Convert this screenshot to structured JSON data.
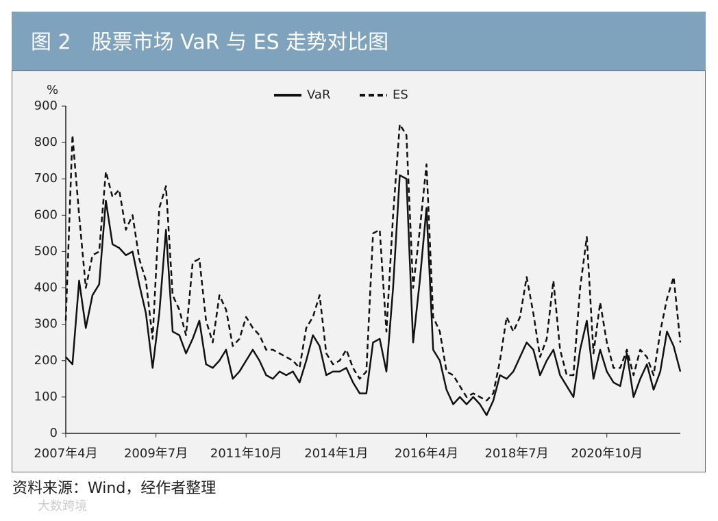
{
  "chart_data": {
    "type": "line",
    "title": "图 2　股票市场 VaR 与 ES 走势对比图",
    "y_label": "%",
    "source": "资料来源：Wind，经作者整理",
    "watermark": "大数跨境",
    "x": [
      "2007-04",
      "2007-06",
      "2007-08",
      "2007-10",
      "2007-12",
      "2008-02",
      "2008-04",
      "2008-06",
      "2008-08",
      "2008-10",
      "2008-12",
      "2009-02",
      "2009-04",
      "2009-06",
      "2009-08",
      "2009-10",
      "2009-12",
      "2010-02",
      "2010-04",
      "2010-06",
      "2010-08",
      "2010-10",
      "2010-12",
      "2011-02",
      "2011-04",
      "2011-06",
      "2011-08",
      "2011-10",
      "2011-12",
      "2012-02",
      "2012-04",
      "2012-06",
      "2012-08",
      "2012-10",
      "2012-12",
      "2013-02",
      "2013-04",
      "2013-06",
      "2013-08",
      "2013-10",
      "2013-12",
      "2014-02",
      "2014-04",
      "2014-06",
      "2014-08",
      "2014-10",
      "2014-12",
      "2015-02",
      "2015-04",
      "2015-06",
      "2015-08",
      "2015-10",
      "2015-12",
      "2016-02",
      "2016-04",
      "2016-06",
      "2016-08",
      "2016-10",
      "2016-12",
      "2017-02",
      "2017-04",
      "2017-06",
      "2017-08",
      "2017-10",
      "2017-12",
      "2018-02",
      "2018-04",
      "2018-06",
      "2018-08",
      "2018-10",
      "2018-12",
      "2019-02",
      "2019-04",
      "2019-06",
      "2019-08",
      "2019-10",
      "2019-12",
      "2020-02",
      "2020-04",
      "2020-06",
      "2020-08",
      "2020-10",
      "2020-12",
      "2021-02",
      "2021-04",
      "2021-06",
      "2021-08",
      "2021-10",
      "2021-12",
      "2022-02",
      "2022-04",
      "2022-06",
      "2022-08"
    ],
    "series": [
      {
        "name": "VaR",
        "color": "#111111",
        "dash": false,
        "values": [
          210,
          190,
          420,
          290,
          380,
          410,
          640,
          520,
          510,
          490,
          500,
          410,
          330,
          180,
          330,
          560,
          280,
          270,
          220,
          260,
          310,
          190,
          180,
          200,
          230,
          150,
          170,
          200,
          230,
          200,
          160,
          150,
          170,
          160,
          170,
          140,
          200,
          270,
          240,
          160,
          170,
          170,
          180,
          140,
          110,
          110,
          250,
          260,
          170,
          400,
          710,
          700,
          250,
          420,
          620,
          230,
          200,
          120,
          80,
          100,
          80,
          100,
          80,
          50,
          90,
          160,
          150,
          170,
          210,
          250,
          230,
          160,
          200,
          230,
          160,
          130,
          100,
          230,
          310,
          150,
          230,
          170,
          140,
          130,
          220,
          100,
          150,
          190,
          120,
          170,
          280,
          240,
          170
        ]
      },
      {
        "name": "ES",
        "color": "#111111",
        "dash": true,
        "values": [
          310,
          820,
          600,
          400,
          490,
          500,
          720,
          650,
          670,
          560,
          600,
          480,
          420,
          260,
          620,
          680,
          380,
          340,
          270,
          470,
          480,
          310,
          250,
          380,
          340,
          240,
          260,
          320,
          290,
          270,
          230,
          230,
          220,
          210,
          200,
          180,
          290,
          320,
          380,
          220,
          190,
          200,
          230,
          180,
          150,
          170,
          550,
          560,
          280,
          600,
          850,
          820,
          400,
          560,
          740,
          320,
          280,
          170,
          160,
          130,
          100,
          110,
          100,
          90,
          110,
          200,
          320,
          280,
          320,
          430,
          330,
          210,
          260,
          420,
          230,
          160,
          160,
          400,
          540,
          220,
          360,
          250,
          180,
          180,
          230,
          160,
          230,
          210,
          160,
          280,
          370,
          430,
          250
        ]
      }
    ],
    "xlim": [
      "2007-04",
      "2022-08"
    ],
    "xticks": [
      {
        "value": "2007-04",
        "label": "2007年4月"
      },
      {
        "value": "2009-07",
        "label": "2009年7月"
      },
      {
        "value": "2011-10",
        "label": "2011年10月"
      },
      {
        "value": "2014-01",
        "label": "2014年1月"
      },
      {
        "value": "2016-04",
        "label": "2016年4月"
      },
      {
        "value": "2018-07",
        "label": "2018年7月"
      },
      {
        "value": "2020-10",
        "label": "2020年10月"
      }
    ],
    "ylim": [
      0,
      900
    ],
    "yticks": [
      0,
      100,
      200,
      300,
      400,
      500,
      600,
      700,
      800,
      900
    ],
    "legend": "top"
  }
}
